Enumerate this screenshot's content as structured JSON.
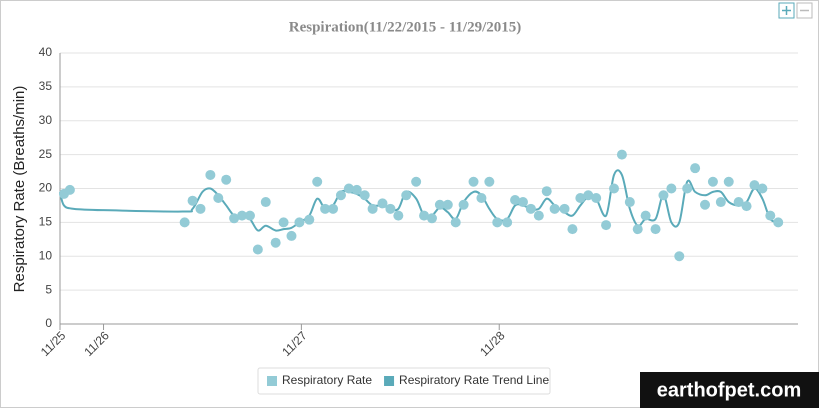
{
  "chart_data": {
    "type": "scatter",
    "title": "Respiration(11/22/2015 - 11/29/2015)",
    "y_label": "Respiratory Rate (Breaths/min)",
    "xlim": [
      0.78,
      4.51
    ],
    "xticks": [
      {
        "value": 0.78,
        "label": "11/25"
      },
      {
        "value": 1,
        "label": "11/26"
      },
      {
        "value": 2,
        "label": "11/27"
      },
      {
        "value": 3,
        "label": "11/28"
      }
    ],
    "ylim": [
      0,
      40
    ],
    "yticks": [
      0,
      5,
      10,
      15,
      20,
      25,
      30,
      35,
      40
    ],
    "grid": true,
    "legend": "bottom",
    "series": [
      {
        "name": "Respiratory Rate",
        "type": "scatter",
        "color": "#93cbd6",
        "x": [
          0.8,
          0.83,
          1.41,
          1.45,
          1.49,
          1.54,
          1.58,
          1.62,
          1.66,
          1.7,
          1.74,
          1.78,
          1.82,
          1.87,
          1.91,
          1.95,
          1.99,
          2.04,
          2.08,
          2.12,
          2.16,
          2.2,
          2.24,
          2.28,
          2.32,
          2.36,
          2.41,
          2.45,
          2.49,
          2.53,
          2.58,
          2.62,
          2.66,
          2.7,
          2.74,
          2.78,
          2.82,
          2.87,
          2.91,
          2.95,
          2.99,
          3.04,
          3.08,
          3.12,
          3.16,
          3.2,
          3.24,
          3.28,
          3.33,
          3.37,
          3.41,
          3.45,
          3.49,
          3.54,
          3.58,
          3.62,
          3.66,
          3.7,
          3.74,
          3.79,
          3.83,
          3.87,
          3.91,
          3.95,
          3.99,
          4.04,
          4.08,
          4.12,
          4.16,
          4.21,
          4.25,
          4.29,
          4.33,
          4.37,
          4.41
        ],
        "values": [
          19.2,
          19.8,
          15,
          18.2,
          17,
          22,
          18.6,
          21.3,
          15.6,
          16,
          16,
          11,
          18,
          12,
          15,
          13,
          15,
          15.4,
          21,
          17,
          17,
          19,
          20,
          19.8,
          19,
          17,
          17.8,
          17,
          16,
          19,
          21,
          16,
          15.6,
          17.6,
          17.6,
          15,
          17.6,
          21,
          18.6,
          21,
          15,
          15,
          18.3,
          18,
          17,
          16,
          19.6,
          17,
          17,
          14,
          18.6,
          19,
          18.6,
          14.6,
          20,
          25,
          18,
          14,
          16,
          14,
          19,
          20,
          10,
          20,
          23,
          17.6,
          21,
          18,
          21,
          18,
          17.4,
          20.5,
          20,
          16,
          15
        ]
      },
      {
        "name": "Respiratory Rate Trend Line",
        "type": "line",
        "color": "#5aaab9",
        "x": [
          0.78,
          0.8,
          0.85,
          1.0,
          1.4,
          1.45,
          1.5,
          1.54,
          1.58,
          1.62,
          1.66,
          1.7,
          1.74,
          1.78,
          1.82,
          1.87,
          1.91,
          1.95,
          1.99,
          2.04,
          2.08,
          2.12,
          2.16,
          2.2,
          2.24,
          2.28,
          2.32,
          2.36,
          2.41,
          2.45,
          2.49,
          2.53,
          2.58,
          2.62,
          2.66,
          2.7,
          2.74,
          2.78,
          2.82,
          2.87,
          2.91,
          2.95,
          2.99,
          3.04,
          3.08,
          3.12,
          3.16,
          3.2,
          3.24,
          3.28,
          3.33,
          3.37,
          3.41,
          3.45,
          3.49,
          3.54,
          3.58,
          3.62,
          3.66,
          3.7,
          3.74,
          3.79,
          3.83,
          3.87,
          3.91,
          3.95,
          3.99,
          4.04,
          4.08,
          4.12,
          4.16,
          4.21,
          4.25,
          4.29,
          4.33,
          4.37,
          4.41
        ],
        "values": [
          19.5,
          17.5,
          17,
          16.8,
          16.6,
          17,
          19.5,
          20,
          19,
          17.5,
          16,
          16,
          15.5,
          13.8,
          14.5,
          13.8,
          14,
          14.2,
          15,
          16,
          18.5,
          17,
          17.5,
          19.5,
          19.5,
          19.2,
          18.5,
          17.5,
          17.5,
          17,
          17,
          19.5,
          18.5,
          16,
          16,
          17.2,
          16.5,
          15.5,
          18,
          19.5,
          19,
          17,
          15.5,
          15.5,
          17.5,
          17.5,
          17,
          17,
          18.5,
          17.5,
          16.5,
          16,
          17.5,
          18.8,
          18.5,
          16,
          22,
          22,
          17,
          14.5,
          15.5,
          15.5,
          19,
          15,
          15,
          21,
          19.5,
          19,
          19.5,
          19.5,
          18,
          17.5,
          18,
          20,
          18.5,
          15.5,
          15
        ]
      }
    ]
  },
  "watermark": "earthofpet.com"
}
